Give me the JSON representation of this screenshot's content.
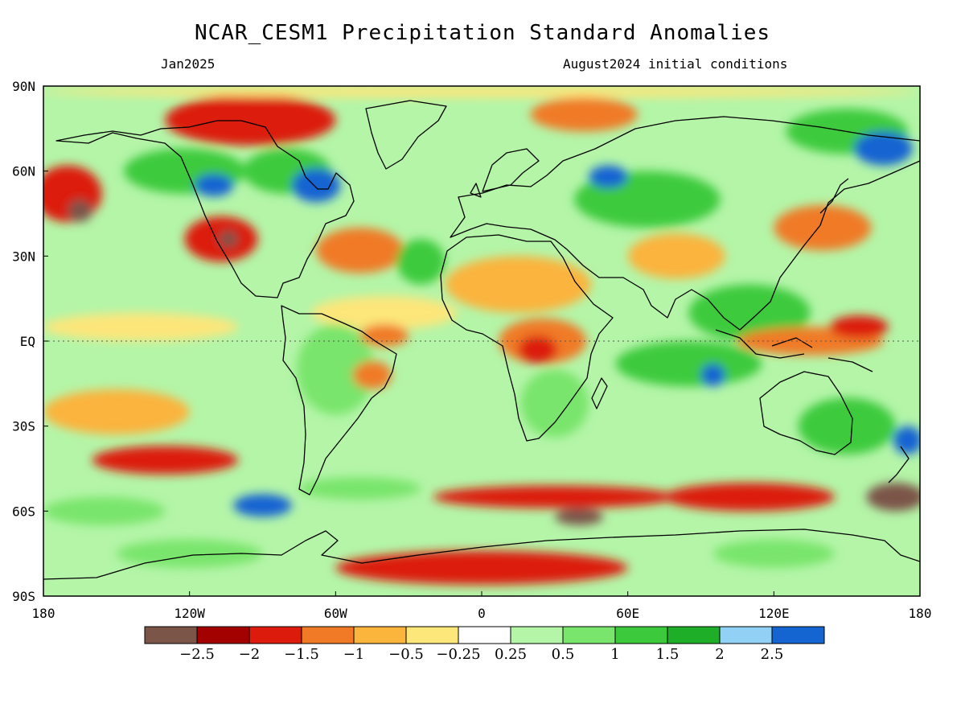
{
  "title": "NCAR_CESM1 Precipitation Standard Anomalies",
  "valid_month": "Jan2025",
  "initial_conditions": "August2024 initial conditions",
  "lat_labels": [
    "90N",
    "60N",
    "30N",
    "EQ",
    "30S",
    "60S",
    "90S"
  ],
  "lat_values": [
    90,
    60,
    30,
    0,
    -30,
    -60,
    -90
  ],
  "lon_labels": [
    "180",
    "120W",
    "60W",
    "0",
    "60E",
    "120E",
    "180"
  ],
  "lon_values": [
    -180,
    -120,
    -60,
    0,
    60,
    120,
    180
  ],
  "colorbar": {
    "colors": [
      "#7b5548",
      "#a30000",
      "#dc1b0c",
      "#f07a25",
      "#fbb43c",
      "#fde67a",
      "#ffffff",
      "#b4f5a8",
      "#79e56c",
      "#3cca3c",
      "#1fae28",
      "#92d0f6",
      "#1464d2"
    ],
    "labels": [
      "−2.5",
      "−2",
      "−1.5",
      "−1",
      "−0.5",
      "−0.25",
      "0.25",
      "0.5",
      "1",
      "1.5",
      "2",
      "2.5"
    ]
  },
  "chart_data": {
    "type": "heatmap",
    "variable": "Precipitation Standard Anomalies",
    "x_range": [
      -180,
      180
    ],
    "y_range": [
      -90,
      90
    ],
    "levels": [
      -2.5,
      -2,
      -1.5,
      -1,
      -0.5,
      -0.25,
      0.25,
      0.5,
      1,
      1.5,
      2,
      2.5
    ],
    "regions": [
      {
        "lon": -95,
        "lat": 78,
        "rx": 35,
        "ry": 9,
        "value": -1.8
      },
      {
        "lon": 42,
        "lat": 80,
        "rx": 22,
        "ry": 6,
        "value": -1.2
      },
      {
        "lon": 150,
        "lat": 74,
        "rx": 25,
        "ry": 8,
        "value": 1.4
      },
      {
        "lon": 165,
        "lat": 68,
        "rx": 12,
        "ry": 6,
        "value": 2.6
      },
      {
        "lon": -170,
        "lat": 52,
        "rx": 14,
        "ry": 10,
        "value": -1.6
      },
      {
        "lon": -165,
        "lat": 46,
        "rx": 5,
        "ry": 4,
        "value": -2.6
      },
      {
        "lon": -122,
        "lat": 60,
        "rx": 25,
        "ry": 8,
        "value": 1.4
      },
      {
        "lon": -110,
        "lat": 55,
        "rx": 8,
        "ry": 4,
        "value": 2.6
      },
      {
        "lon": -107,
        "lat": 36,
        "rx": 15,
        "ry": 8,
        "value": -1.6
      },
      {
        "lon": -104,
        "lat": 36,
        "rx": 4,
        "ry": 3,
        "value": -2.6
      },
      {
        "lon": -80,
        "lat": 60,
        "rx": 18,
        "ry": 8,
        "value": 1.2
      },
      {
        "lon": -68,
        "lat": 55,
        "rx": 10,
        "ry": 6,
        "value": 2.6
      },
      {
        "lon": -50,
        "lat": 32,
        "rx": 18,
        "ry": 8,
        "value": -1.5
      },
      {
        "lon": -25,
        "lat": 28,
        "rx": 10,
        "ry": 8,
        "value": 1.4
      },
      {
        "lon": -40,
        "lat": 10,
        "rx": 30,
        "ry": 6,
        "value": -0.5
      },
      {
        "lon": -140,
        "lat": 5,
        "rx": 40,
        "ry": 5,
        "value": -0.35
      },
      {
        "lon": -60,
        "lat": -10,
        "rx": 16,
        "ry": 16,
        "value": 0.7
      },
      {
        "lon": -45,
        "lat": -12,
        "rx": 8,
        "ry": 5,
        "value": -1.5
      },
      {
        "lon": -40,
        "lat": 2,
        "rx": 10,
        "ry": 4,
        "value": -1.4
      },
      {
        "lon": 15,
        "lat": 20,
        "rx": 30,
        "ry": 10,
        "value": -0.8
      },
      {
        "lon": 25,
        "lat": 0,
        "rx": 18,
        "ry": 8,
        "value": -1.2
      },
      {
        "lon": 23,
        "lat": -3,
        "rx": 8,
        "ry": 5,
        "value": -2.0
      },
      {
        "lon": 30,
        "lat": -22,
        "rx": 14,
        "ry": 12,
        "value": 0.8
      },
      {
        "lon": 68,
        "lat": 50,
        "rx": 30,
        "ry": 10,
        "value": 1.2
      },
      {
        "lon": 52,
        "lat": 58,
        "rx": 8,
        "ry": 4,
        "value": 2.6
      },
      {
        "lon": 80,
        "lat": 30,
        "rx": 20,
        "ry": 8,
        "value": -0.8
      },
      {
        "lon": 110,
        "lat": 10,
        "rx": 25,
        "ry": 10,
        "value": 1.4
      },
      {
        "lon": 140,
        "lat": 40,
        "rx": 20,
        "ry": 8,
        "value": -1.4
      },
      {
        "lon": 135,
        "lat": 0,
        "rx": 30,
        "ry": 5,
        "value": -1.3
      },
      {
        "lon": 155,
        "lat": 5,
        "rx": 12,
        "ry": 4,
        "value": -1.8
      },
      {
        "lon": 85,
        "lat": -8,
        "rx": 30,
        "ry": 8,
        "value": 1.3
      },
      {
        "lon": 95,
        "lat": -12,
        "rx": 5,
        "ry": 4,
        "value": 2.6
      },
      {
        "lon": 150,
        "lat": -30,
        "rx": 20,
        "ry": 10,
        "value": 1.3
      },
      {
        "lon": 175,
        "lat": -35,
        "rx": 6,
        "ry": 5,
        "value": 2.6
      },
      {
        "lon": -150,
        "lat": -25,
        "rx": 30,
        "ry": 8,
        "value": -1.0
      },
      {
        "lon": -130,
        "lat": -42,
        "rx": 30,
        "ry": 5,
        "value": -1.6
      },
      {
        "lon": -155,
        "lat": -60,
        "rx": 25,
        "ry": 5,
        "value": 0.9
      },
      {
        "lon": -90,
        "lat": -58,
        "rx": 12,
        "ry": 4,
        "value": 2.6
      },
      {
        "lon": 30,
        "lat": -55,
        "rx": 50,
        "ry": 4,
        "value": -2.0
      },
      {
        "lon": 40,
        "lat": -62,
        "rx": 10,
        "ry": 3,
        "value": -2.6
      },
      {
        "lon": 110,
        "lat": -55,
        "rx": 35,
        "ry": 5,
        "value": -1.8
      },
      {
        "lon": 170,
        "lat": -55,
        "rx": 12,
        "ry": 5,
        "value": -2.6
      },
      {
        "lon": -50,
        "lat": -52,
        "rx": 25,
        "ry": 4,
        "value": 0.8
      },
      {
        "lon": 0,
        "lat": -80,
        "rx": 60,
        "ry": 6,
        "value": -1.6
      },
      {
        "lon": -120,
        "lat": -75,
        "rx": 30,
        "ry": 5,
        "value": 0.9
      },
      {
        "lon": 120,
        "lat": -75,
        "rx": 25,
        "ry": 5,
        "value": 0.8
      },
      {
        "lon": 0,
        "lat": 88,
        "rx": 180,
        "ry": 2,
        "value": -0.3
      }
    ]
  }
}
